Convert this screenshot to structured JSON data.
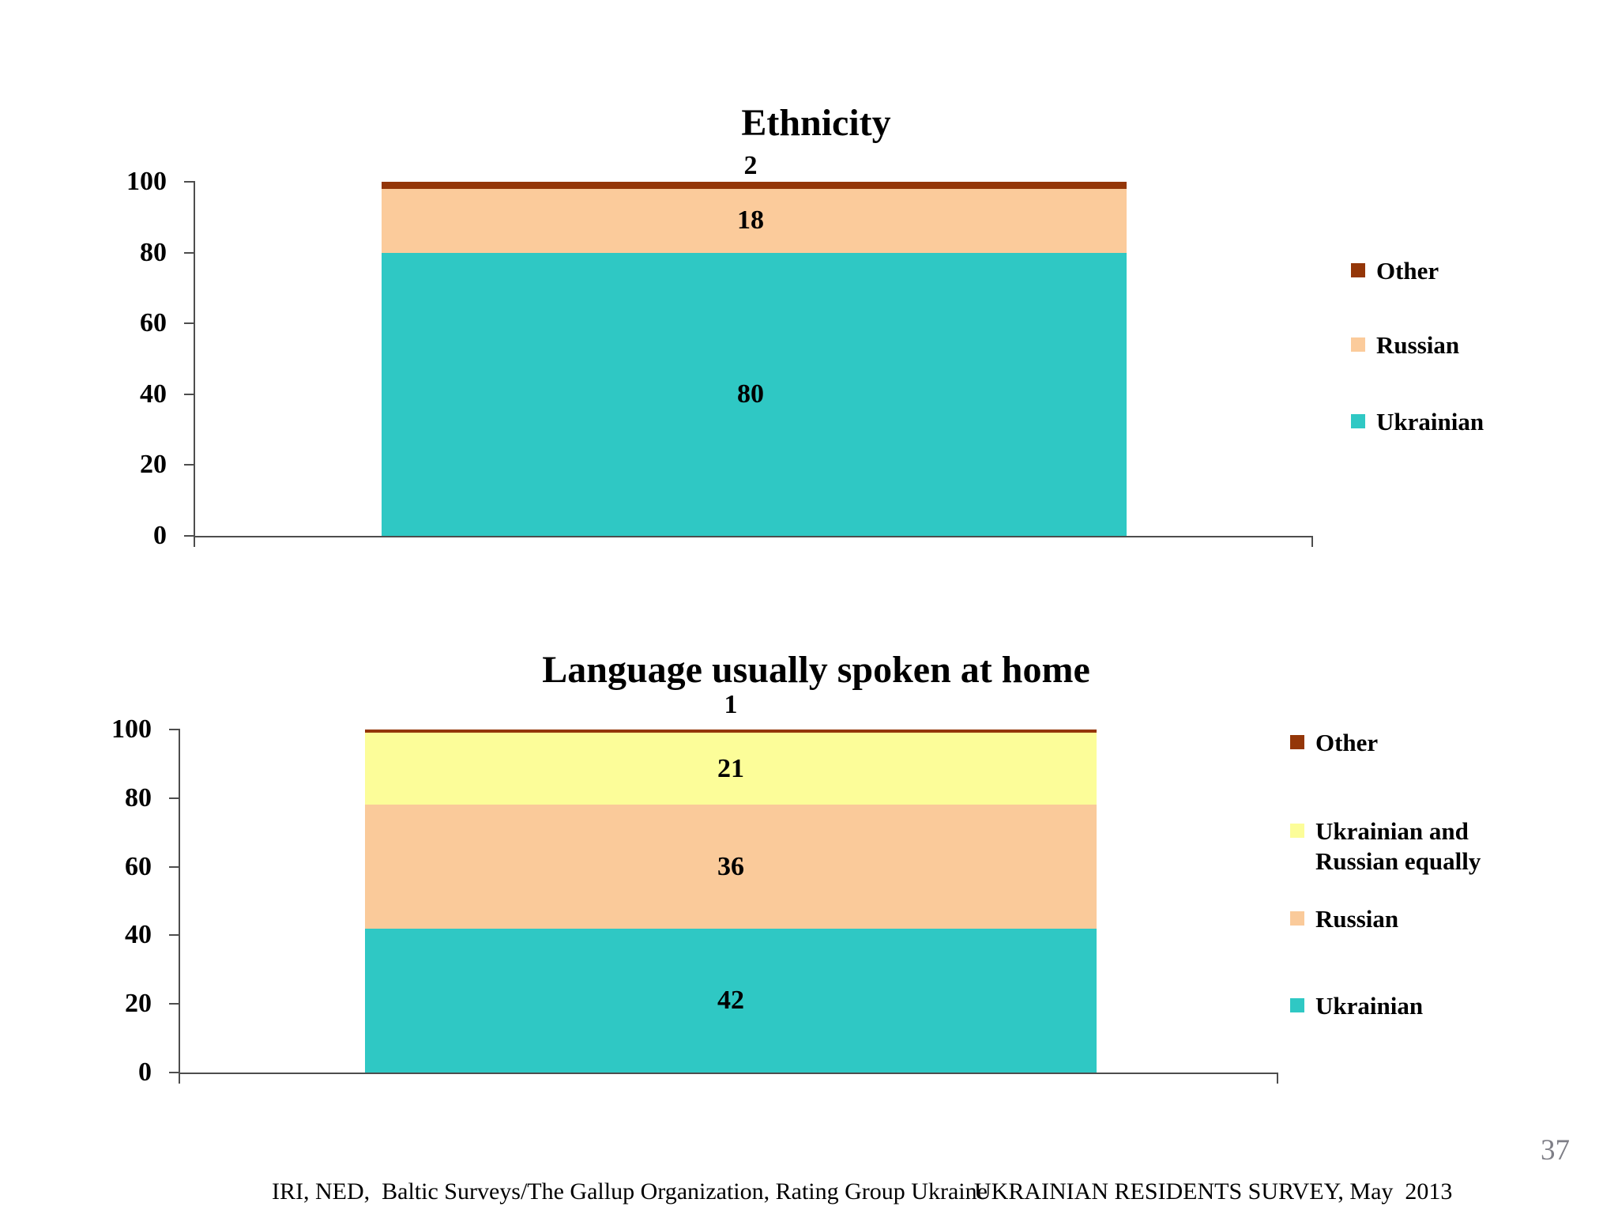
{
  "page": {
    "number": "37"
  },
  "footer": {
    "left": "IRI, NED,  Baltic Surveys/The Gallup Organization, Rating Group Ukraine",
    "right": "UKRAINIAN RESIDENTS SURVEY, May  2013"
  },
  "colors": {
    "ukrainian_teal": "#2fc8c4",
    "russian_peach_top": "#fbcb9b",
    "russian_peach_bottom": "#faca9a",
    "equally_yellow": "#fcfd99",
    "other_brown": "#943608",
    "axis_gray": "#4d4d4d"
  },
  "chart_data": [
    {
      "type": "bar",
      "stacked": true,
      "title": "Ethnicity",
      "xlabel": "",
      "ylabel": "",
      "ylim": [
        0,
        100
      ],
      "yticks": [
        0,
        20,
        40,
        60,
        80,
        100
      ],
      "grid": false,
      "legend_position": "right",
      "categories": [
        ""
      ],
      "series": [
        {
          "name": "Ukrainian",
          "values": [
            80
          ],
          "color": "#2fc8c4"
        },
        {
          "name": "Russian",
          "values": [
            18
          ],
          "color": "#fbcb9b"
        },
        {
          "name": "Other",
          "values": [
            2
          ],
          "color": "#943608"
        }
      ],
      "data_labels": {
        "Ukrainian": 80,
        "Russian": 18,
        "Other": 2
      },
      "legend_order_top_to_bottom": [
        "Other",
        "Russian",
        "Ukrainian"
      ]
    },
    {
      "type": "bar",
      "stacked": true,
      "title": "Language usually spoken at home",
      "xlabel": "",
      "ylabel": "",
      "ylim": [
        0,
        100
      ],
      "yticks": [
        0,
        20,
        40,
        60,
        80,
        100
      ],
      "grid": false,
      "legend_position": "right",
      "categories": [
        ""
      ],
      "series": [
        {
          "name": "Ukrainian",
          "values": [
            42
          ],
          "color": "#2fc8c4"
        },
        {
          "name": "Russian",
          "values": [
            36
          ],
          "color": "#faca9a"
        },
        {
          "name": "Ukrainian and Russian equally",
          "values": [
            21
          ],
          "color": "#fcfd99"
        },
        {
          "name": "Other",
          "values": [
            1
          ],
          "color": "#943608"
        }
      ],
      "data_labels": {
        "Ukrainian": 42,
        "Russian": 36,
        "Ukrainian and Russian equally": 21,
        "Other": 1
      },
      "legend_order_top_to_bottom": [
        "Other",
        "Ukrainian and Russian equally",
        "Russian",
        "Ukrainian"
      ]
    }
  ]
}
